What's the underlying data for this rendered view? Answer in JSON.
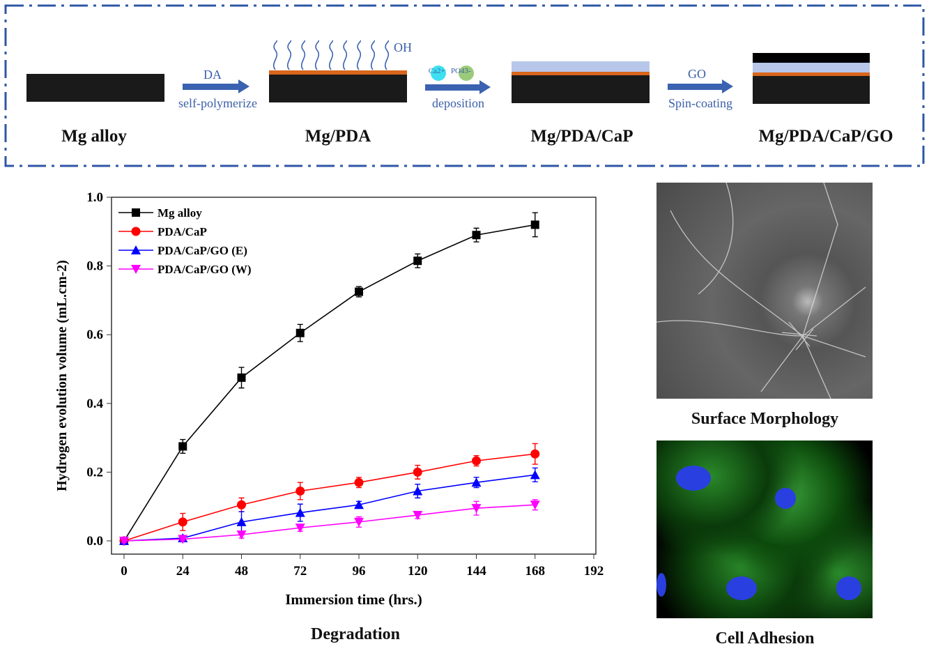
{
  "scheme": {
    "stages": [
      "Mg alloy",
      "Mg/PDA",
      "Mg/PDA/CaP",
      "Mg/PDA/CaP/GO"
    ],
    "steps": [
      {
        "top": "DA",
        "bottom": "self-polymerize"
      },
      {
        "top_ions": [
          "Ca2+",
          "PO43-"
        ],
        "bottom": "deposition"
      },
      {
        "top": "GO",
        "bottom": "Spin-coating"
      }
    ],
    "oh_label": "OH"
  },
  "panels": {
    "degradation": "Degradation",
    "surface": "Surface Morphology",
    "cell": "Cell Adhesion"
  },
  "chart_data": {
    "type": "line",
    "xlabel": "Immersion time (hrs.)",
    "ylabel": "Hydrogen evolution volume (mL.cm-2)",
    "xlim": [
      0,
      192
    ],
    "ylim": [
      0,
      1.0
    ],
    "xticks": [
      0,
      24,
      48,
      72,
      96,
      120,
      144,
      168,
      192
    ],
    "yticks": [
      "0.0",
      "0.2",
      "0.4",
      "0.6",
      "0.8",
      "1.0"
    ],
    "legend_position": "top-left",
    "x": [
      0,
      24,
      48,
      72,
      96,
      120,
      144,
      168
    ],
    "series": [
      {
        "name": "Mg alloy",
        "color": "#000000",
        "marker": "square",
        "values": [
          0,
          0.275,
          0.475,
          0.605,
          0.725,
          0.815,
          0.89,
          0.92
        ],
        "errors": [
          0.005,
          0.02,
          0.03,
          0.025,
          0.015,
          0.02,
          0.02,
          0.035
        ]
      },
      {
        "name": "PDA/CaP",
        "color": "#ff0000",
        "marker": "circle",
        "values": [
          0,
          0.055,
          0.105,
          0.145,
          0.17,
          0.2,
          0.233,
          0.253
        ],
        "errors": [
          0.005,
          0.025,
          0.02,
          0.025,
          0.015,
          0.02,
          0.015,
          0.03
        ]
      },
      {
        "name": "PDA/CaP/GO (E)",
        "color": "#0000ff",
        "marker": "triangle-up",
        "values": [
          0,
          0.008,
          0.055,
          0.082,
          0.105,
          0.145,
          0.17,
          0.192
        ],
        "errors": [
          0.005,
          0.008,
          0.03,
          0.025,
          0.01,
          0.02,
          0.015,
          0.02
        ]
      },
      {
        "name": "PDA/CaP/GO (W)",
        "color": "#ff00ff",
        "marker": "triangle-down",
        "values": [
          0,
          0.005,
          0.018,
          0.038,
          0.055,
          0.075,
          0.095,
          0.105
        ],
        "errors": [
          0.005,
          0.005,
          0.01,
          0.01,
          0.015,
          0.01,
          0.02,
          0.015
        ]
      }
    ]
  }
}
